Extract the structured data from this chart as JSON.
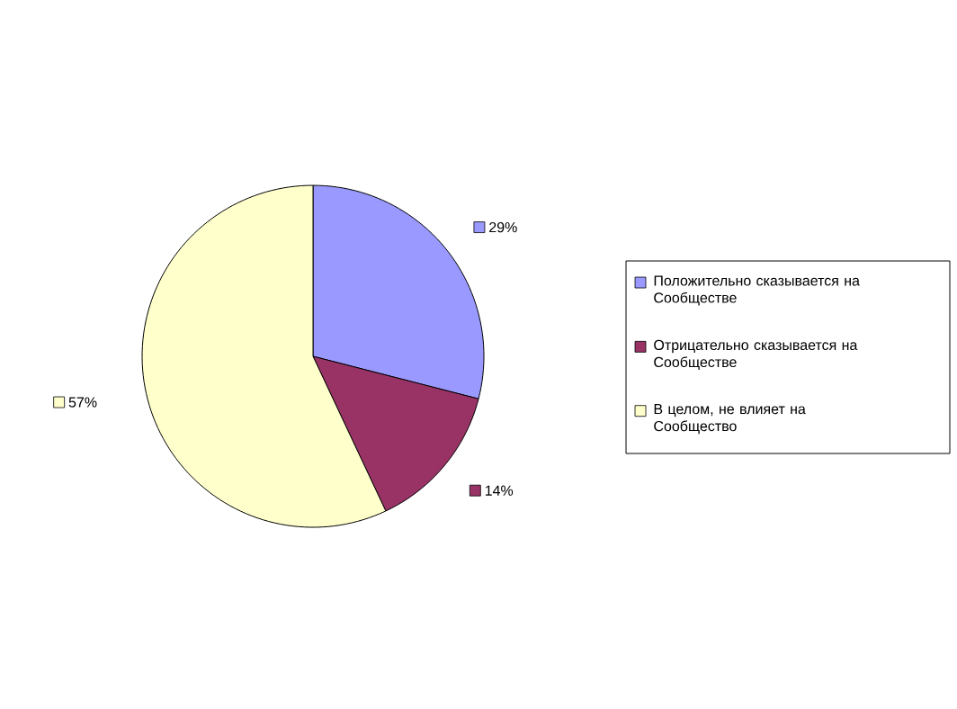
{
  "chart_data": {
    "type": "pie",
    "categories": [
      "Положительно сказывается на Сообществе",
      "Отрицательно сказывается на Сообществе",
      "В целом, не влияет на Сообщество"
    ],
    "values": [
      29,
      14,
      57
    ],
    "colors": [
      "#9999ff",
      "#993366",
      "#ffffcc"
    ],
    "value_labels": [
      "29%",
      "14%",
      "57%"
    ],
    "legend": "right"
  }
}
